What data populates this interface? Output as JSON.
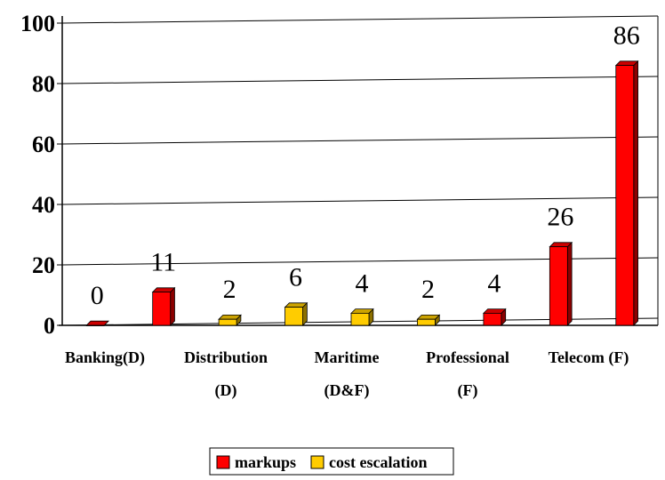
{
  "chart_data": {
    "type": "bar",
    "categories": [
      [
        "Banking(D)",
        ""
      ],
      [
        "Distribution",
        "(D)"
      ],
      [
        "Maritime",
        "(D&F)"
      ],
      [
        "Professional",
        "(F)"
      ],
      [
        "Telecom (F)",
        ""
      ]
    ],
    "ylim": [
      0,
      100
    ],
    "yticks": [
      "0",
      "20",
      "40",
      "60",
      "80",
      "100"
    ],
    "grid": true,
    "legend_position": "bottom",
    "colors": {
      "markups": "#ff0000",
      "cost_escalation": "#ffcc00"
    },
    "bars": [
      {
        "series": "markups",
        "value": 0,
        "label": "0"
      },
      {
        "series": "markups",
        "value": 11,
        "label": "11"
      },
      {
        "series": "cost_escalation",
        "value": 2,
        "label": "2"
      },
      {
        "series": "cost_escalation",
        "value": 6,
        "label": "6"
      },
      {
        "series": "cost_escalation",
        "value": 4,
        "label": "4"
      },
      {
        "series": "cost_escalation",
        "value": 2,
        "label": "2"
      },
      {
        "series": "markups",
        "value": 4,
        "label": "4"
      },
      {
        "series": "markups",
        "value": 26,
        "label": "26"
      },
      {
        "series": "markups",
        "value": 86,
        "label": "86"
      }
    ],
    "series": [
      {
        "key": "markups",
        "name": "markups"
      },
      {
        "key": "cost_escalation",
        "name": "cost escalation"
      }
    ]
  }
}
